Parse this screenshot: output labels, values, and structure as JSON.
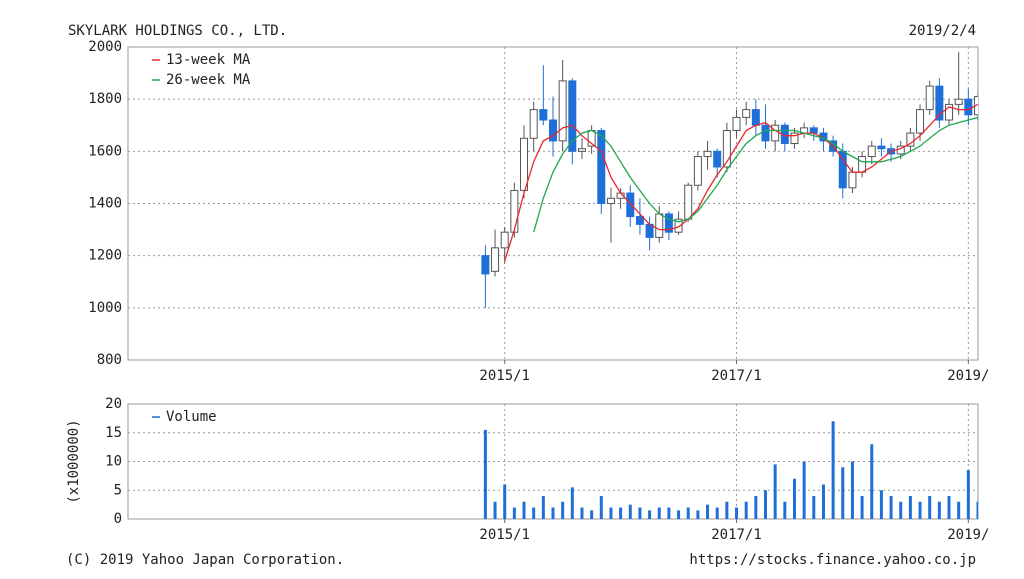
{
  "header": {
    "title": "SKYLARK HOLDINGS CO., LTD.",
    "date": "2019/2/4"
  },
  "chart_data": [
    {
      "type": "candlestick",
      "x": [
        "2014/11",
        "2014/12",
        "2015/1",
        "2015/2",
        "2015/3",
        "2015/4",
        "2015/5",
        "2015/6",
        "2015/7",
        "2015/8",
        "2015/9",
        "2015/10",
        "2015/11",
        "2015/12",
        "2016/1",
        "2016/2",
        "2016/3",
        "2016/4",
        "2016/5",
        "2016/6",
        "2016/7",
        "2016/8",
        "2016/9",
        "2016/10",
        "2016/11",
        "2016/12",
        "2017/1",
        "2017/2",
        "2017/3",
        "2017/4",
        "2017/5",
        "2017/6",
        "2017/7",
        "2017/8",
        "2017/9",
        "2017/10",
        "2017/11",
        "2017/12",
        "2018/1",
        "2018/2",
        "2018/3",
        "2018/4",
        "2018/5",
        "2018/6",
        "2018/7",
        "2018/8",
        "2018/9",
        "2018/10",
        "2018/11",
        "2018/12",
        "2019/1",
        "2019/2"
      ],
      "open": [
        1200,
        1140,
        1230,
        1290,
        1450,
        1650,
        1760,
        1720,
        1640,
        1870,
        1600,
        1620,
        1680,
        1400,
        1420,
        1440,
        1350,
        1320,
        1270,
        1360,
        1290,
        1340,
        1470,
        1580,
        1600,
        1540,
        1680,
        1730,
        1760,
        1700,
        1640,
        1700,
        1630,
        1670,
        1690,
        1670,
        1640,
        1600,
        1460,
        1520,
        1580,
        1620,
        1610,
        1590,
        1620,
        1670,
        1760,
        1850,
        1720,
        1780,
        1800,
        1740
      ],
      "high": [
        1240,
        1300,
        1310,
        1480,
        1700,
        1790,
        1930,
        1810,
        1950,
        1880,
        1650,
        1700,
        1690,
        1460,
        1460,
        1470,
        1420,
        1350,
        1390,
        1370,
        1370,
        1480,
        1600,
        1640,
        1610,
        1710,
        1760,
        1790,
        1800,
        1780,
        1720,
        1710,
        1690,
        1710,
        1700,
        1690,
        1660,
        1630,
        1540,
        1600,
        1640,
        1650,
        1630,
        1640,
        1690,
        1780,
        1870,
        1880,
        1800,
        1980,
        1840,
        1830
      ],
      "low": [
        1000,
        1120,
        1170,
        1270,
        1420,
        1600,
        1700,
        1580,
        1600,
        1550,
        1570,
        1590,
        1360,
        1250,
        1380,
        1310,
        1280,
        1220,
        1250,
        1260,
        1280,
        1330,
        1450,
        1530,
        1500,
        1520,
        1650,
        1700,
        1660,
        1610,
        1600,
        1600,
        1610,
        1650,
        1640,
        1600,
        1580,
        1420,
        1440,
        1500,
        1550,
        1580,
        1560,
        1570,
        1600,
        1640,
        1740,
        1690,
        1700,
        1740,
        1700,
        1720
      ],
      "close": [
        1130,
        1230,
        1290,
        1450,
        1650,
        1760,
        1720,
        1640,
        1870,
        1600,
        1610,
        1680,
        1400,
        1420,
        1440,
        1350,
        1320,
        1270,
        1360,
        1290,
        1340,
        1470,
        1580,
        1600,
        1540,
        1680,
        1730,
        1760,
        1700,
        1640,
        1700,
        1630,
        1670,
        1690,
        1670,
        1640,
        1600,
        1460,
        1520,
        1580,
        1620,
        1610,
        1590,
        1620,
        1670,
        1760,
        1850,
        1720,
        1780,
        1800,
        1740,
        1810
      ],
      "up_color": "#ffffff",
      "down_color": "#1e6fd9",
      "series": [
        {
          "name": "13-week MA",
          "color": "#e8282a",
          "values": [
            null,
            null,
            1180,
            1300,
            1440,
            1560,
            1640,
            1660,
            1690,
            1700,
            1660,
            1630,
            1600,
            1500,
            1440,
            1400,
            1360,
            1320,
            1300,
            1300,
            1310,
            1340,
            1380,
            1450,
            1510,
            1560,
            1620,
            1680,
            1700,
            1710,
            1680,
            1660,
            1660,
            1670,
            1670,
            1650,
            1620,
            1570,
            1520,
            1520,
            1540,
            1570,
            1600,
            1610,
            1630,
            1660,
            1700,
            1740,
            1770,
            1760,
            1760,
            1780
          ]
        },
        {
          "name": "26-week MA",
          "color": "#1fa84f",
          "values": [
            null,
            null,
            null,
            null,
            null,
            1290,
            1420,
            1520,
            1590,
            1640,
            1670,
            1680,
            1660,
            1620,
            1560,
            1500,
            1450,
            1400,
            1360,
            1340,
            1330,
            1340,
            1370,
            1420,
            1470,
            1530,
            1580,
            1630,
            1660,
            1680,
            1680,
            1680,
            1680,
            1670,
            1660,
            1650,
            1630,
            1600,
            1580,
            1560,
            1560,
            1560,
            1570,
            1580,
            1600,
            1620,
            1650,
            1680,
            1700,
            1710,
            1720,
            1730
          ]
        }
      ],
      "xlim": [
        "2011/10",
        "2019/2"
      ],
      "xticks": [
        "2015/1",
        "2017/1",
        {
          "value": "2019/1",
          "label": "2019/"
        }
      ],
      "ylim": [
        800,
        2000
      ],
      "yticks": [
        800,
        1000,
        1200,
        1400,
        1600,
        1800,
        2000
      ]
    },
    {
      "type": "bar",
      "x": [
        "2014/11",
        "2014/12",
        "2015/1",
        "2015/2",
        "2015/3",
        "2015/4",
        "2015/5",
        "2015/6",
        "2015/7",
        "2015/8",
        "2015/9",
        "2015/10",
        "2015/11",
        "2015/12",
        "2016/1",
        "2016/2",
        "2016/3",
        "2016/4",
        "2016/5",
        "2016/6",
        "2016/7",
        "2016/8",
        "2016/9",
        "2016/10",
        "2016/11",
        "2016/12",
        "2017/1",
        "2017/2",
        "2017/3",
        "2017/4",
        "2017/5",
        "2017/6",
        "2017/7",
        "2017/8",
        "2017/9",
        "2017/10",
        "2017/11",
        "2017/12",
        "2018/1",
        "2018/2",
        "2018/3",
        "2018/4",
        "2018/5",
        "2018/6",
        "2018/7",
        "2018/8",
        "2018/9",
        "2018/10",
        "2018/11",
        "2018/12",
        "2019/1",
        "2019/2"
      ],
      "series": [
        {
          "name": "Volume",
          "color": "#1e6fd9",
          "values": [
            15.5,
            3,
            6,
            2,
            3,
            2,
            4,
            2,
            3,
            5.5,
            2,
            1.5,
            4,
            2,
            2,
            2.5,
            2,
            1.5,
            2,
            2,
            1.5,
            2,
            1.5,
            2.5,
            2,
            3,
            2,
            3,
            4,
            5,
            9.5,
            3,
            7,
            10,
            4,
            6,
            17,
            9,
            10,
            4,
            13,
            5,
            4,
            3,
            4,
            3,
            4,
            3,
            4,
            3,
            8.5,
            3
          ]
        }
      ],
      "xlim": [
        "2011/10",
        "2019/2"
      ],
      "xticks": [
        "2015/1",
        "2017/1",
        {
          "value": "2019/1",
          "label": "2019/"
        }
      ],
      "ylim": [
        0,
        20
      ],
      "yticks": [
        0,
        5,
        10,
        15,
        20
      ],
      "y_label": "(x1000000)"
    }
  ],
  "footer": {
    "copyright": "(C) 2019 Yahoo Japan Corporation.",
    "url": "https://stocks.finance.yahoo.co.jp"
  }
}
